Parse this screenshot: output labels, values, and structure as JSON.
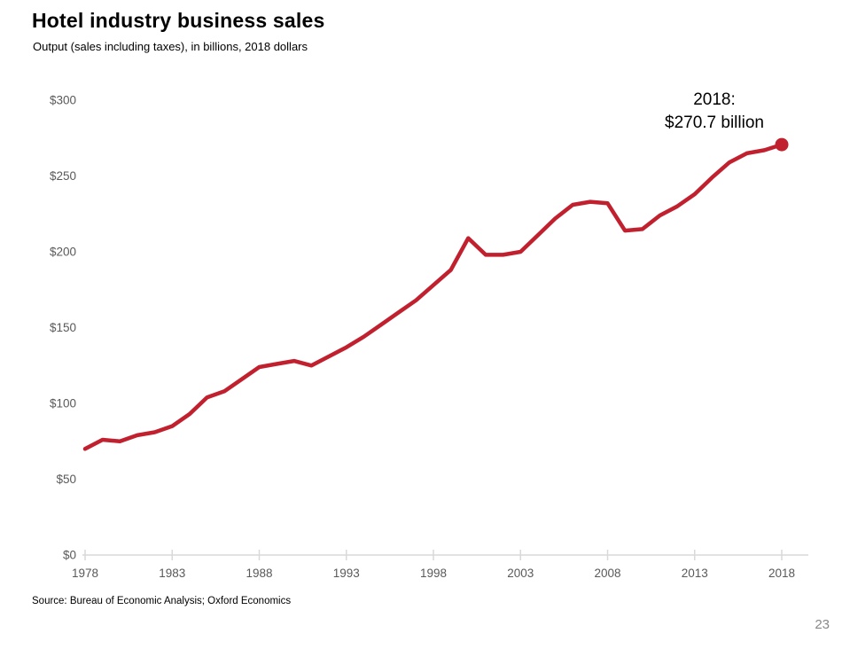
{
  "page": {
    "title": "Hotel industry business sales",
    "subtitle": "Output (sales including taxes), in billions, 2018 dollars",
    "source": "Source: Bureau of Economic Analysis; Oxford Economics",
    "page_number": "23"
  },
  "annotation": {
    "line1": "2018:",
    "line2": "$270.7 billion"
  },
  "chart_data": {
    "type": "line",
    "title": "Hotel industry business sales",
    "subtitle": "Output (sales including taxes), in billions, 2018 dollars",
    "series_name": "Hotel industry business sales, billions of 2018 dollars",
    "x": [
      1978,
      1979,
      1980,
      1981,
      1982,
      1983,
      1984,
      1985,
      1986,
      1987,
      1988,
      1989,
      1990,
      1991,
      1992,
      1993,
      1994,
      1995,
      1996,
      1997,
      1998,
      1999,
      2000,
      2001,
      2002,
      2003,
      2004,
      2005,
      2006,
      2007,
      2008,
      2009,
      2010,
      2011,
      2012,
      2013,
      2014,
      2015,
      2016,
      2017,
      2018
    ],
    "values": [
      70,
      76,
      75,
      79,
      81,
      85,
      93,
      104,
      108,
      116,
      124,
      126,
      128,
      125,
      131,
      137,
      144,
      152,
      160,
      168,
      178,
      188,
      209,
      198,
      198,
      200,
      211,
      222,
      231,
      233,
      232,
      214,
      215,
      224,
      230,
      238,
      249,
      259,
      265,
      267,
      270.7
    ],
    "xlabel": "",
    "ylabel": "",
    "xlim": [
      1978,
      2018
    ],
    "ylim": [
      0,
      300
    ],
    "x_tick_labels": [
      "1978",
      "1983",
      "1988",
      "1993",
      "1998",
      "2003",
      "2008",
      "2013",
      "2018"
    ],
    "y_tick_values": [
      0,
      50,
      100,
      150,
      200,
      250,
      300
    ],
    "y_tick_labels": [
      "$0",
      "$50",
      "$100",
      "$150",
      "$200",
      "$250",
      "$300"
    ],
    "grid": false,
    "legend": false,
    "line_color": "#c1202e",
    "axis_color": "#d9d9d9",
    "tick_label_color": "#595959",
    "endpoint": {
      "year": 2018,
      "value": 270.7,
      "label": "2018: $270.7 billion",
      "marker": "dot"
    }
  }
}
